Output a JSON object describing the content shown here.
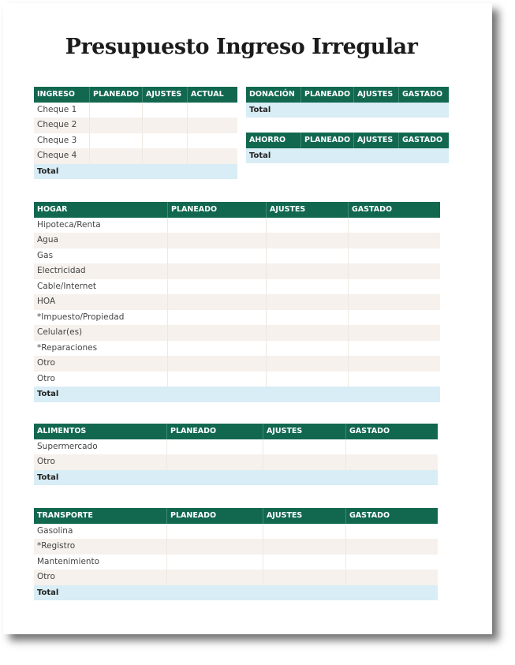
{
  "title": "Presupuesto Ingreso Irregular",
  "colors": {
    "header": "#12684f",
    "alt_row": "#f6f1ec",
    "total_row": "#d8edf5"
  },
  "tables": [
    {
      "id": "ingreso",
      "headers": [
        "INGRESO",
        "PLANEADO",
        "AJUSTES",
        "ACTUAL"
      ],
      "rows": [
        "Cheque 1",
        "Cheque 2",
        "Cheque 3",
        "Cheque 4"
      ],
      "total": "Total"
    },
    {
      "id": "donacion",
      "headers": [
        "DONACIÓN",
        "PLANEADO",
        "AJUSTES",
        "GASTADO"
      ],
      "rows": [],
      "total": "Total"
    },
    {
      "id": "ahorro",
      "headers": [
        "AHORRO",
        "PLANEADO",
        "AJUSTES",
        "GASTADO"
      ],
      "rows": [],
      "total": "Total"
    },
    {
      "id": "hogar",
      "headers": [
        "HOGAR",
        "PLANEADO",
        "AJUSTES",
        "GASTADO"
      ],
      "rows": [
        "Hipoteca/Renta",
        "Agua",
        "Gas",
        "Electricidad",
        "Cable/Internet",
        "HOA",
        "*Impuesto/Propiedad",
        "Celular(es)",
        "*Reparaciones",
        "Otro",
        "Otro"
      ],
      "total": "Total"
    },
    {
      "id": "alimentos",
      "headers": [
        "ALIMENTOS",
        "PLANEADO",
        "AJUSTES",
        "GASTADO"
      ],
      "rows": [
        "Supermercado",
        "Otro"
      ],
      "total": "Total"
    },
    {
      "id": "transporte",
      "headers": [
        "TRANSPORTE",
        "PLANEADO",
        "AJUSTES",
        "GASTADO"
      ],
      "rows": [
        "Gasolina",
        "*Registro",
        "Mantenimiento",
        "Otro"
      ],
      "total": "Total"
    }
  ]
}
